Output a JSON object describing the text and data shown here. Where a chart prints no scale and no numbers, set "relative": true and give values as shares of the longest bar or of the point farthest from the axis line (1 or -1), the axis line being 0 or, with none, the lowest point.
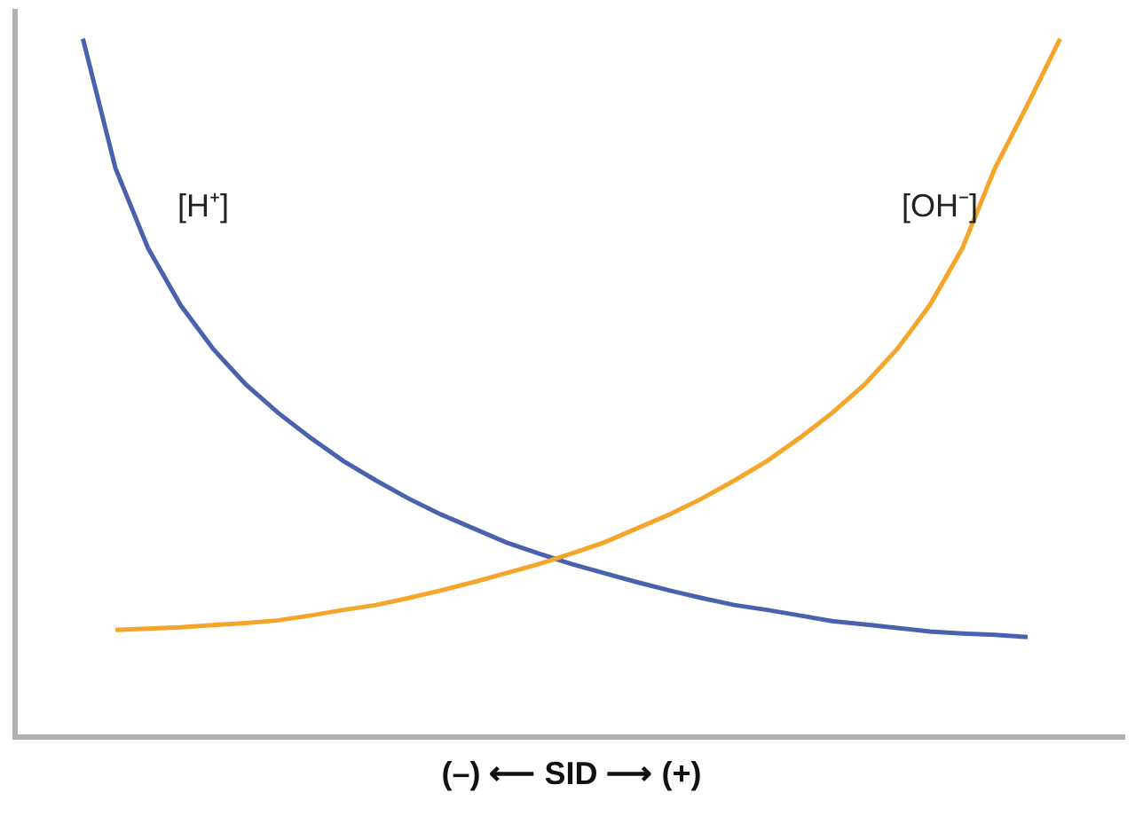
{
  "chart_data": {
    "type": "line",
    "relative": true,
    "xlabel": "(–) ⟵ SID ⟶ (+)",
    "categories": [
      null,
      null,
      null,
      null,
      null,
      null,
      null,
      null,
      null,
      null,
      null,
      null,
      null,
      null,
      null,
      null,
      null,
      null,
      null,
      null,
      null,
      null,
      null,
      null,
      null,
      null,
      null,
      null,
      null,
      null,
      null
    ],
    "series": [
      {
        "name": "[H⁺]",
        "color": "#4a62ad",
        "values": [
          1.0,
          0.814,
          0.699,
          0.617,
          0.554,
          0.503,
          0.462,
          0.426,
          0.393,
          0.365,
          0.339,
          0.316,
          0.296,
          0.276,
          0.26,
          0.245,
          0.232,
          0.219,
          0.207,
          0.196,
          0.186,
          0.179,
          0.171,
          0.163,
          0.158,
          0.153,
          0.148,
          0.145,
          0.143,
          0.14,
          null
        ]
      },
      {
        "name": "[OH⁻]",
        "color": "#f4a52a",
        "values": [
          null,
          0.15,
          0.152,
          0.154,
          0.157,
          0.16,
          0.164,
          0.171,
          0.179,
          0.186,
          0.196,
          0.207,
          0.219,
          0.232,
          0.245,
          0.26,
          0.276,
          0.296,
          0.316,
          0.339,
          0.365,
          0.393,
          0.426,
          0.462,
          0.503,
          0.554,
          0.617,
          0.699,
          0.814,
          0.905,
          1.0
        ]
      }
    ],
    "grid": false,
    "legend": false,
    "marker": "none",
    "line_style": "solid"
  }
}
